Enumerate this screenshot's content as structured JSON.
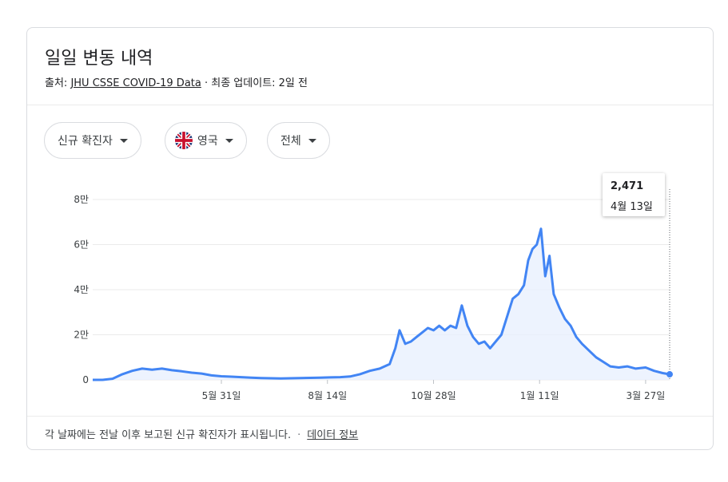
{
  "header": {
    "title": "일일 변동 내역",
    "source_prefix": "출처: ",
    "source_link": "JHU CSSE COVID-19 Data",
    "source_suffix": " · 최종 업데이트: 2일 전"
  },
  "filters": {
    "metric": "신규 확진자",
    "country": "영국",
    "country_flag": "uk-flag-icon",
    "region": "전체"
  },
  "tooltip": {
    "value": "2,471",
    "date": "4월 13일"
  },
  "footer": {
    "note": "각 날짜에는 전날 이후 보고된 신규 확진자가 표시됩니다.",
    "separator": "·",
    "link": "데이터 정보"
  },
  "colors": {
    "line": "#4285f4",
    "fill": "#e8f0fe",
    "grid": "#ebebeb"
  },
  "chart_data": {
    "type": "area",
    "title": "",
    "xlabel": "",
    "ylabel": "",
    "ylim": [
      0,
      80000
    ],
    "y_ticks": [
      0,
      20000,
      40000,
      60000,
      80000
    ],
    "y_tick_labels": [
      "0",
      "2만",
      "4만",
      "6만",
      "8만"
    ],
    "x_ticks": [
      "2020-05-31",
      "2020-08-14",
      "2020-10-28",
      "2021-01-11",
      "2021-03-27"
    ],
    "x_tick_labels": [
      "5월 31일",
      "8월 14일",
      "10월 28일",
      "1월 11일",
      "3월 27일"
    ],
    "grid": true,
    "series": [
      {
        "x": [
          "2020-03-01",
          "2020-03-08",
          "2020-03-15",
          "2020-03-22",
          "2020-03-29",
          "2020-04-05",
          "2020-04-12",
          "2020-04-19",
          "2020-04-26",
          "2020-05-03",
          "2020-05-10",
          "2020-05-17",
          "2020-05-24",
          "2020-05-31",
          "2020-06-07",
          "2020-06-14",
          "2020-06-21",
          "2020-06-28",
          "2020-07-05",
          "2020-07-12",
          "2020-07-19",
          "2020-07-26",
          "2020-08-02",
          "2020-08-09",
          "2020-08-16",
          "2020-08-23",
          "2020-08-30",
          "2020-09-06",
          "2020-09-13",
          "2020-09-20",
          "2020-09-27",
          "2020-10-01",
          "2020-10-04",
          "2020-10-08",
          "2020-10-12",
          "2020-10-16",
          "2020-10-20",
          "2020-10-24",
          "2020-10-28",
          "2020-11-01",
          "2020-11-05",
          "2020-11-09",
          "2020-11-13",
          "2020-11-17",
          "2020-11-21",
          "2020-11-25",
          "2020-11-29",
          "2020-12-03",
          "2020-12-07",
          "2020-12-11",
          "2020-12-15",
          "2020-12-19",
          "2020-12-23",
          "2020-12-27",
          "2020-12-31",
          "2021-01-03",
          "2021-01-06",
          "2021-01-09",
          "2021-01-12",
          "2021-01-15",
          "2021-01-18",
          "2021-01-21",
          "2021-01-25",
          "2021-01-29",
          "2021-02-02",
          "2021-02-06",
          "2021-02-10",
          "2021-02-15",
          "2021-02-20",
          "2021-02-25",
          "2021-03-02",
          "2021-03-08",
          "2021-03-14",
          "2021-03-20",
          "2021-03-27",
          "2021-04-02",
          "2021-04-08",
          "2021-04-13"
        ],
        "values": [
          0,
          0,
          500,
          2500,
          4000,
          5000,
          4500,
          5000,
          4300,
          3800,
          3200,
          2800,
          2000,
          1600,
          1400,
          1200,
          1000,
          800,
          700,
          600,
          700,
          800,
          900,
          1000,
          1100,
          1200,
          1500,
          2500,
          4000,
          5000,
          7000,
          14000,
          22000,
          16000,
          17000,
          19000,
          21000,
          23000,
          22000,
          24000,
          22000,
          24000,
          23000,
          33000,
          24000,
          19000,
          16000,
          17000,
          14000,
          17000,
          20000,
          28000,
          36000,
          38000,
          42000,
          53000,
          58000,
          60000,
          67000,
          46000,
          55000,
          38000,
          32000,
          27000,
          24000,
          19000,
          16000,
          13000,
          10000,
          8000,
          6000,
          5500,
          6000,
          5000,
          5500,
          4000,
          3000,
          2471
        ]
      }
    ]
  }
}
